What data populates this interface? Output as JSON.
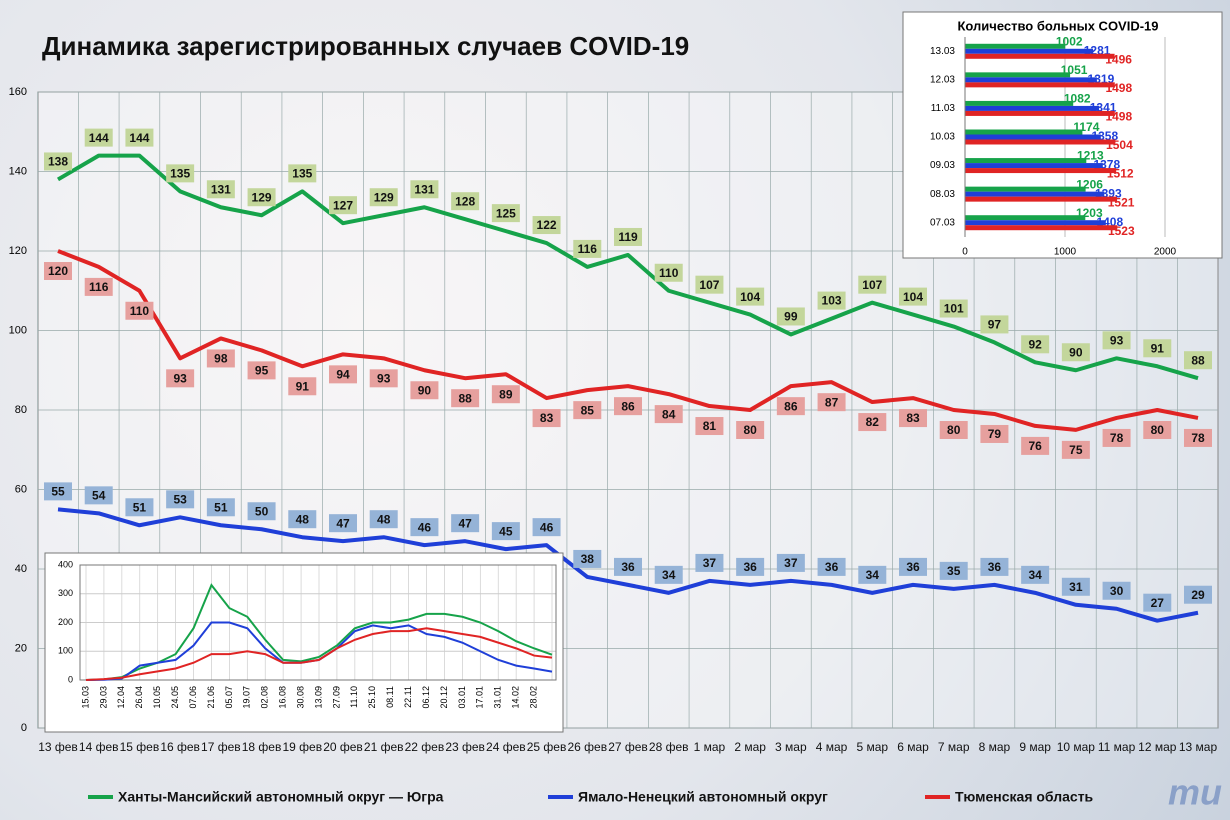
{
  "chart_data": [
    {
      "type": "line",
      "title": "Динамика зарегистрированных случаев COVID-19",
      "categories": [
        "13 фев",
        "14 фев",
        "15 фев",
        "16 фев",
        "17 фев",
        "18 фев",
        "19 фев",
        "20 фев",
        "21 фев",
        "22 фев",
        "23 фев",
        "24 фев",
        "25 фев",
        "26 фев",
        "27 фев",
        "28 фев",
        "1 мар",
        "2 мар",
        "3 мар",
        "4 мар",
        "5 мар",
        "6 мар",
        "7 мар",
        "8 мар",
        "9 мар",
        "10 мар",
        "11 мар",
        "12 мар",
        "13 мар"
      ],
      "series": [
        {
          "name": "Ханты-Мансийский автономный округ — Югра",
          "color": "#16a34a",
          "label_color": "#c3d69b",
          "label_position": "above",
          "values": [
            138,
            144,
            144,
            135,
            131,
            129,
            135,
            127,
            129,
            131,
            128,
            125,
            122,
            116,
            119,
            110,
            107,
            104,
            99,
            103,
            107,
            104,
            101,
            97,
            92,
            90,
            93,
            91,
            88
          ]
        },
        {
          "name": "Ямало-Ненецкий автономный округ",
          "color": "#1f3fd8",
          "label_color": "#95b3d7",
          "label_position": "above",
          "values": [
            55,
            54,
            51,
            53,
            51,
            50,
            48,
            47,
            48,
            46,
            47,
            45,
            46,
            38,
            36,
            34,
            37,
            36,
            37,
            36,
            34,
            36,
            35,
            36,
            34,
            31,
            30,
            27,
            29
          ]
        },
        {
          "name": "Тюменская область",
          "color": "#e02424",
          "label_color": "#e6a09e",
          "label_position": "below",
          "values": [
            120,
            116,
            110,
            93,
            98,
            95,
            91,
            94,
            93,
            90,
            88,
            89,
            83,
            85,
            86,
            84,
            81,
            80,
            86,
            87,
            82,
            83,
            80,
            79,
            76,
            75,
            78,
            80,
            78
          ]
        }
      ],
      "ylim": [
        0,
        160
      ],
      "yticks": [
        0,
        20,
        40,
        60,
        80,
        100,
        120,
        140,
        160
      ],
      "grid": true,
      "logo_text": "ти"
    },
    {
      "type": "bar",
      "orientation": "horizontal",
      "title": "Количество больных COVID-19",
      "categories": [
        "07.03",
        "08.03",
        "09.03",
        "10.03",
        "11.03",
        "12.03",
        "13.03"
      ],
      "series": [
        {
          "name": "Ханты-Мансийский автономный округ — Югра",
          "color": "#16a34a",
          "values": [
            1203,
            1206,
            1213,
            1174,
            1082,
            1051,
            1002
          ]
        },
        {
          "name": "Ямало-Ненецкий автономный округ",
          "color": "#1f3fd8",
          "values": [
            1408,
            1393,
            1378,
            1358,
            1341,
            1319,
            1281
          ]
        },
        {
          "name": "Тюменская область",
          "color": "#e02424",
          "values": [
            1523,
            1521,
            1512,
            1504,
            1498,
            1498,
            1496
          ]
        }
      ],
      "xlim": [
        0,
        2500
      ],
      "xticks": [
        0,
        1000,
        2000
      ],
      "grid": true
    },
    {
      "type": "line",
      "categories": [
        "15.03",
        "29.03",
        "12.04",
        "26.04",
        "10.05",
        "24.05",
        "07.06",
        "21.06",
        "05.07",
        "19.07",
        "02.08",
        "16.08",
        "30.08",
        "13.09",
        "27.09",
        "11.10",
        "25.10",
        "08.11",
        "22.11",
        "06.12",
        "20.12",
        "03.01",
        "17.01",
        "31.01",
        "14.02",
        "28.02",
        null
      ],
      "series": [
        {
          "name": "Ханты-Мансийский автономный округ — Югра",
          "color": "#16a34a",
          "values": [
            0,
            2,
            10,
            40,
            60,
            90,
            180,
            330,
            250,
            220,
            140,
            70,
            65,
            80,
            120,
            180,
            200,
            200,
            210,
            230,
            230,
            220,
            200,
            170,
            135,
            110,
            88
          ]
        },
        {
          "name": "Ямало-Ненецкий автономный округ",
          "color": "#1f3fd8",
          "values": [
            0,
            1,
            5,
            50,
            60,
            70,
            120,
            200,
            200,
            180,
            110,
            60,
            60,
            70,
            110,
            170,
            190,
            180,
            190,
            160,
            150,
            130,
            100,
            70,
            50,
            40,
            29
          ]
        },
        {
          "name": "Тюменская область",
          "color": "#e02424",
          "values": [
            0,
            3,
            8,
            20,
            30,
            40,
            60,
            90,
            90,
            100,
            90,
            60,
            60,
            70,
            110,
            140,
            160,
            170,
            170,
            180,
            170,
            160,
            150,
            130,
            110,
            85,
            78
          ]
        }
      ],
      "ylim": [
        0,
        400
      ],
      "yticks": [
        0,
        100,
        200,
        300,
        400
      ],
      "grid": true
    }
  ]
}
